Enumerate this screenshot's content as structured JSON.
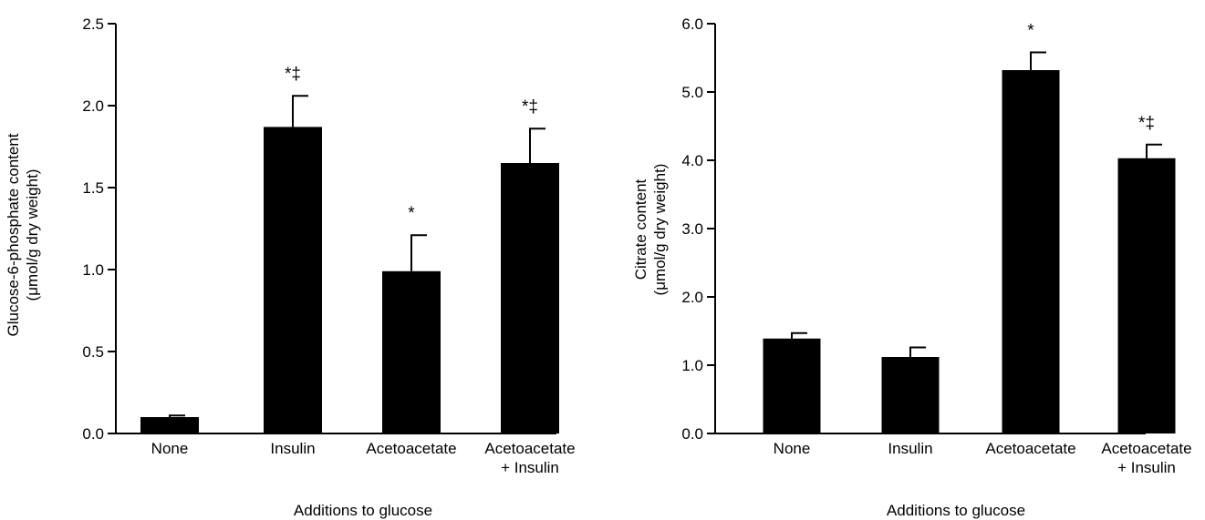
{
  "chart_data": [
    {
      "type": "bar",
      "categories": [
        [
          "None"
        ],
        [
          "Insulin"
        ],
        [
          "Acetoacetate"
        ],
        [
          "Acetoacetate",
          "+ Insulin"
        ]
      ],
      "values": [
        0.1,
        1.87,
        0.99,
        1.65
      ],
      "errors": [
        0.01,
        0.19,
        0.22,
        0.21
      ],
      "annotations": [
        "",
        "*‡",
        "*",
        "*‡"
      ],
      "ylabel": [
        "Glucose-6-phosphate content",
        "(μmol/g dry weight)"
      ],
      "xlabel": "Additions to glucose",
      "ylim": [
        0,
        2.5
      ],
      "yticks": [
        "0.0",
        "0.5",
        "1.0",
        "1.5",
        "2.0",
        "2.5"
      ],
      "bar_color": "#000000",
      "grid": false,
      "legend": "none"
    },
    {
      "type": "bar",
      "categories": [
        [
          "None"
        ],
        [
          "Insulin"
        ],
        [
          "Acetoacetate"
        ],
        [
          "Acetoacetate",
          "+ Insulin"
        ]
      ],
      "values": [
        1.39,
        1.12,
        5.32,
        4.03
      ],
      "errors": [
        0.08,
        0.14,
        0.26,
        0.2
      ],
      "annotations": [
        "",
        "",
        "*",
        "*‡"
      ],
      "ylabel": [
        "Citrate content",
        "(μmol/g dry weight)"
      ],
      "xlabel": "Additions to glucose",
      "ylim": [
        0,
        6.0
      ],
      "yticks": [
        "0.0",
        "1.0",
        "2.0",
        "3.0",
        "4.0",
        "5.0",
        "6.0"
      ],
      "bar_color": "#000000",
      "grid": false,
      "legend": "none"
    }
  ]
}
